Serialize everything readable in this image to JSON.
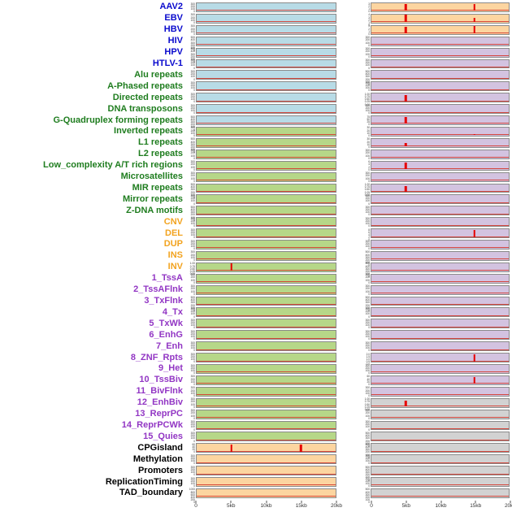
{
  "colors": {
    "label_virus": "#0a0acd",
    "label_repeat": "#1f7d1f",
    "label_sv": "#f2a31f",
    "label_state": "#9236c4",
    "label_other": "#000000",
    "panel_blue": "#b8dbe6",
    "panel_green": "#b6d788",
    "panel_orange": "#fcd5a0",
    "panel_purple": "#d3c3e0",
    "panel_gray": "#d2d2d2",
    "spike_red": "#e60000",
    "baseline_red": "#d43a2f"
  },
  "chart_data": {
    "type": "line",
    "x_ticks": [
      "0",
      "5kb",
      "10kb",
      "15kb",
      "20kb"
    ],
    "x_range_kb": [
      0,
      20
    ],
    "rows": [
      {
        "label": "AAV2",
        "group": "virus",
        "left_bg": "blue",
        "left_ticks": [
          "300",
          "200",
          "100",
          "0"
        ],
        "left_spikes": [],
        "right_bg": "orange",
        "right_ticks": [
          "3",
          "2",
          "1",
          "0"
        ],
        "right_spikes": [
          {
            "x_kb": 5,
            "rel_h": 0.9
          },
          {
            "x_kb": 15,
            "rel_h": 0.85
          }
        ]
      },
      {
        "label": "EBV",
        "group": "virus",
        "left_bg": "blue",
        "left_ticks": [
          "300",
          "200",
          "100",
          "0"
        ],
        "left_spikes": [],
        "right_bg": "orange",
        "right_ticks": [
          "4",
          "3",
          "2",
          "1",
          "0"
        ],
        "right_spikes": [
          {
            "x_kb": 5,
            "rel_h": 0.9
          },
          {
            "x_kb": 15,
            "rel_h": 0.55
          }
        ]
      },
      {
        "label": "HBV",
        "group": "virus",
        "left_bg": "blue",
        "left_ticks": [
          "300",
          "200",
          "100",
          "0"
        ],
        "left_spikes": [],
        "right_bg": "orange",
        "right_ticks": [
          "3",
          "2",
          "1",
          "0"
        ],
        "right_spikes": [
          {
            "x_kb": 5,
            "rel_h": 0.85
          },
          {
            "x_kb": 15,
            "rel_h": 0.9
          }
        ]
      },
      {
        "label": "HIV",
        "group": "virus",
        "left_bg": "blue",
        "left_ticks": [
          "500",
          "400",
          "300",
          "200",
          "100",
          "0"
        ],
        "left_spikes": [],
        "right_bg": "purple",
        "right_ticks": [
          "300",
          "200",
          "100",
          "0"
        ],
        "right_spikes": []
      },
      {
        "label": "HPV",
        "group": "virus",
        "left_bg": "blue",
        "left_ticks": [
          "500",
          "400",
          "300",
          "200",
          "100",
          "0"
        ],
        "left_spikes": [],
        "right_bg": "purple",
        "right_ticks": [
          "300",
          "200",
          "100",
          "0"
        ],
        "right_spikes": []
      },
      {
        "label": "HTLV-1",
        "group": "virus",
        "left_bg": "blue",
        "left_ticks": [
          "300",
          "200",
          "100",
          "0"
        ],
        "left_spikes": [],
        "right_bg": "purple",
        "right_ticks": [
          "300",
          "200",
          "100",
          "0"
        ],
        "right_spikes": []
      },
      {
        "label": "Alu repeats",
        "group": "repeat",
        "left_bg": "blue",
        "left_ticks": [
          "300",
          "200",
          "100",
          "0"
        ],
        "left_spikes": [],
        "right_bg": "purple",
        "right_ticks": [
          "500",
          "400",
          "300",
          "200",
          "100",
          "0"
        ],
        "right_spikes": []
      },
      {
        "label": "A-Phased repeats",
        "group": "repeat",
        "left_bg": "blue",
        "left_ticks": [
          "300",
          "200",
          "100",
          "0"
        ],
        "left_spikes": [],
        "right_bg": "purple",
        "right_ticks": [
          "300",
          "200",
          "100",
          "0"
        ],
        "right_spikes": []
      },
      {
        "label": "Directed repeats",
        "group": "repeat",
        "left_bg": "blue",
        "left_ticks": [
          "300",
          "200",
          "100",
          "0"
        ],
        "left_spikes": [],
        "right_bg": "purple",
        "right_ticks": [
          "1.00",
          "0.75",
          "0.50",
          "0.25",
          "0.00"
        ],
        "right_spikes": [
          {
            "x_kb": 5,
            "rel_h": 0.8
          }
        ]
      },
      {
        "label": "DNA transposons",
        "group": "repeat",
        "left_bg": "blue",
        "left_ticks": [
          "300",
          "200",
          "100",
          "0"
        ],
        "left_spikes": [],
        "right_bg": "purple",
        "right_ticks": [
          "300",
          "200",
          "100",
          "0"
        ],
        "right_spikes": []
      },
      {
        "label": "G-Quadruplex forming repeats",
        "group": "repeat",
        "left_bg": "blue",
        "left_ticks": [
          "500",
          "400",
          "300",
          "200",
          "100",
          "0"
        ],
        "left_spikes": [],
        "right_bg": "purple",
        "right_ticks": [
          "75",
          "50",
          "25",
          "0"
        ],
        "right_spikes": [
          {
            "x_kb": 5,
            "rel_h": 0.85
          }
        ]
      },
      {
        "label": "Inverted repeats",
        "group": "repeat",
        "left_bg": "green",
        "left_ticks": [
          "300",
          "200",
          "100",
          "0"
        ],
        "left_spikes": [],
        "right_bg": "purple",
        "right_ticks": [
          "30",
          "20",
          "10",
          "0"
        ],
        "right_spikes": [
          {
            "x_kb": 15,
            "rel_h": 0.12
          }
        ]
      },
      {
        "label": "L1 repeats",
        "group": "repeat",
        "left_bg": "green",
        "left_ticks": [
          "500",
          "400",
          "300",
          "200",
          "100",
          "0"
        ],
        "left_spikes": [],
        "right_bg": "purple",
        "right_ticks": [
          "30",
          "20",
          "10",
          "0"
        ],
        "right_spikes": [
          {
            "x_kb": 5,
            "rel_h": 0.45
          }
        ]
      },
      {
        "label": "L2 repeats",
        "group": "repeat",
        "left_bg": "green",
        "left_ticks": [
          "300",
          "200",
          "100",
          "0"
        ],
        "left_spikes": [],
        "right_bg": "purple",
        "right_ticks": [
          "300",
          "200",
          "100",
          "0"
        ],
        "right_spikes": []
      },
      {
        "label": "Low_complexity A/T rich regions",
        "group": "repeat",
        "left_bg": "green",
        "left_ticks": [
          "300",
          "200",
          "100",
          "0"
        ],
        "left_spikes": [],
        "right_bg": "purple",
        "right_ticks": [
          "6",
          "4",
          "2",
          "0"
        ],
        "right_spikes": [
          {
            "x_kb": 5,
            "rel_h": 0.8
          }
        ]
      },
      {
        "label": "Microsatellites",
        "group": "repeat",
        "left_bg": "green",
        "left_ticks": [
          "300",
          "200",
          "100",
          "0"
        ],
        "left_spikes": [],
        "right_bg": "purple",
        "right_ticks": [
          "300",
          "200",
          "100",
          "0"
        ],
        "right_spikes": []
      },
      {
        "label": "MIR repeats",
        "group": "repeat",
        "left_bg": "green",
        "left_ticks": [
          "500",
          "400",
          "300",
          "200",
          "100",
          "0"
        ],
        "left_spikes": [],
        "right_bg": "purple",
        "right_ticks": [
          "1.00",
          "0.75",
          "0.50",
          "0.25",
          "0.00"
        ],
        "right_spikes": [
          {
            "x_kb": 5,
            "rel_h": 0.7
          }
        ]
      },
      {
        "label": "Mirror repeats",
        "group": "repeat",
        "left_bg": "green",
        "left_ticks": [
          "300",
          "200",
          "100",
          "0"
        ],
        "left_spikes": [],
        "right_bg": "purple",
        "right_ticks": [
          "300",
          "200",
          "100",
          "0"
        ],
        "right_spikes": []
      },
      {
        "label": "Z-DNA motifs",
        "group": "repeat",
        "left_bg": "green",
        "left_ticks": [
          "500",
          "400",
          "300",
          "200",
          "100",
          "0"
        ],
        "left_spikes": [],
        "right_bg": "purple",
        "right_ticks": [
          "300",
          "200",
          "100",
          "0"
        ],
        "right_spikes": []
      },
      {
        "label": "CNV",
        "group": "sv",
        "left_bg": "green",
        "left_ticks": [
          "300",
          "200",
          "100",
          "0"
        ],
        "left_spikes": [],
        "right_bg": "purple",
        "right_ticks": [
          "300",
          "200",
          "100",
          "0"
        ],
        "right_spikes": []
      },
      {
        "label": "DEL",
        "group": "sv",
        "left_bg": "green",
        "left_ticks": [
          "300",
          "200",
          "100",
          "0"
        ],
        "left_spikes": [],
        "right_bg": "purple",
        "right_ticks": [
          "8",
          "6",
          "4",
          "2",
          "0"
        ],
        "right_spikes": [
          {
            "x_kb": 15,
            "rel_h": 0.9
          }
        ]
      },
      {
        "label": "DUP",
        "group": "sv",
        "left_bg": "green",
        "left_ticks": [
          "300",
          "200",
          "100",
          "0"
        ],
        "left_spikes": [],
        "right_bg": "purple",
        "right_ticks": [
          "300",
          "200",
          "100",
          "0"
        ],
        "right_spikes": []
      },
      {
        "label": "INS",
        "group": "sv",
        "left_bg": "green",
        "left_ticks": [
          "300",
          "200",
          "100",
          "0"
        ],
        "left_spikes": [],
        "right_bg": "purple",
        "right_ticks": [
          "500",
          "400",
          "300",
          "200",
          "100",
          "0"
        ],
        "right_spikes": []
      },
      {
        "label": "INV",
        "group": "sv",
        "left_bg": "green",
        "left_ticks": [
          "1.00",
          "0.75",
          "0.50",
          "0.25",
          "0.00"
        ],
        "left_spikes": [
          {
            "x_kb": 5,
            "rel_h": 0.9
          }
        ],
        "right_bg": "purple",
        "right_ticks": [
          "500",
          "400",
          "300",
          "200",
          "100",
          "0"
        ],
        "right_spikes": []
      },
      {
        "label": "1_TssA",
        "group": "state",
        "left_bg": "green",
        "left_ticks": [
          "300",
          "200",
          "100",
          "0"
        ],
        "left_spikes": [],
        "right_bg": "purple",
        "right_ticks": [
          "300",
          "200",
          "100",
          "0"
        ],
        "right_spikes": []
      },
      {
        "label": "2_TssAFlnk",
        "group": "state",
        "left_bg": "green",
        "left_ticks": [
          "300",
          "200",
          "100",
          "0"
        ],
        "left_spikes": [],
        "right_bg": "purple",
        "right_ticks": [
          "300",
          "200",
          "100",
          "0"
        ],
        "right_spikes": []
      },
      {
        "label": "3_TxFlnk",
        "group": "state",
        "left_bg": "green",
        "left_ticks": [
          "500",
          "400",
          "300",
          "200",
          "100",
          "0"
        ],
        "left_spikes": [],
        "right_bg": "purple",
        "right_ticks": [
          "500",
          "400",
          "300",
          "200",
          "100",
          "0"
        ],
        "right_spikes": []
      },
      {
        "label": "4_Tx",
        "group": "state",
        "left_bg": "green",
        "left_ticks": [
          "300",
          "200",
          "100",
          "0"
        ],
        "left_spikes": [],
        "right_bg": "purple",
        "right_ticks": [
          "300",
          "200",
          "100",
          "0"
        ],
        "right_spikes": []
      },
      {
        "label": "5_TxWk",
        "group": "state",
        "left_bg": "green",
        "left_ticks": [
          "300",
          "200",
          "100",
          "0"
        ],
        "left_spikes": [],
        "right_bg": "purple",
        "right_ticks": [
          "300",
          "200",
          "100",
          "0"
        ],
        "right_spikes": []
      },
      {
        "label": "6_EnhG",
        "group": "state",
        "left_bg": "green",
        "left_ticks": [
          "300",
          "200",
          "100",
          "0"
        ],
        "left_spikes": [],
        "right_bg": "purple",
        "right_ticks": [
          "300",
          "200",
          "100",
          "0"
        ],
        "right_spikes": []
      },
      {
        "label": "7_Enh",
        "group": "state",
        "left_bg": "green",
        "left_ticks": [
          "300",
          "200",
          "100",
          "0"
        ],
        "left_spikes": [],
        "right_bg": "purple",
        "right_ticks": [
          "300",
          "200",
          "100",
          "0"
        ],
        "right_spikes": []
      },
      {
        "label": "8_ZNF_Rpts",
        "group": "state",
        "left_bg": "green",
        "left_ticks": [
          "300",
          "200",
          "100",
          "0"
        ],
        "left_spikes": [],
        "right_bg": "purple",
        "right_ticks": [
          "2.0",
          "1.5",
          "1.0",
          "0.5",
          "0.0"
        ],
        "right_spikes": [
          {
            "x_kb": 15,
            "rel_h": 0.85
          }
        ]
      },
      {
        "label": "9_Het",
        "group": "state",
        "left_bg": "green",
        "left_ticks": [
          "300",
          "200",
          "100",
          "0"
        ],
        "left_spikes": [],
        "right_bg": "purple",
        "right_ticks": [
          "300",
          "200",
          "100",
          "0"
        ],
        "right_spikes": []
      },
      {
        "label": "10_TssBiv",
        "group": "state",
        "left_bg": "green",
        "left_ticks": [
          "300",
          "200",
          "100",
          "0"
        ],
        "left_spikes": [],
        "right_bg": "purple",
        "right_ticks": [
          "60",
          "40",
          "20",
          "0"
        ],
        "right_spikes": [
          {
            "x_kb": 15,
            "rel_h": 0.8
          }
        ]
      },
      {
        "label": "11_BivFlnk",
        "group": "state",
        "left_bg": "green",
        "left_ticks": [
          "300",
          "200",
          "100",
          "0"
        ],
        "left_spikes": [],
        "right_bg": "purple",
        "right_ticks": [
          "300",
          "200",
          "100",
          "0"
        ],
        "right_spikes": []
      },
      {
        "label": "12_EnhBiv",
        "group": "state",
        "left_bg": "green",
        "left_ticks": [
          "300",
          "200",
          "100",
          "0"
        ],
        "left_spikes": [],
        "right_bg": "gray",
        "right_ticks": [
          "1.00",
          "0.75",
          "0.50",
          "0.25",
          "0.00"
        ],
        "right_spikes": [
          {
            "x_kb": 5,
            "rel_h": 0.75
          }
        ]
      },
      {
        "label": "13_ReprPC",
        "group": "state",
        "left_bg": "green",
        "left_ticks": [
          "300",
          "200",
          "100",
          "0"
        ],
        "left_spikes": [],
        "right_bg": "gray",
        "right_ticks": [
          "300",
          "200",
          "100",
          "0"
        ],
        "right_spikes": []
      },
      {
        "label": "14_ReprPCWk",
        "group": "state",
        "left_bg": "green",
        "left_ticks": [
          "300",
          "200",
          "100",
          "0"
        ],
        "left_spikes": [],
        "right_bg": "gray",
        "right_ticks": [
          "300",
          "200",
          "100",
          "0"
        ],
        "right_spikes": []
      },
      {
        "label": "15_Quies",
        "group": "state",
        "left_bg": "green",
        "left_ticks": [
          "300",
          "200",
          "100",
          "0"
        ],
        "left_spikes": [],
        "right_bg": "gray",
        "right_ticks": [
          "500",
          "400",
          "300",
          "200",
          "100",
          "0"
        ],
        "right_spikes": []
      },
      {
        "label": "CPGisland",
        "group": "other",
        "left_bg": "orange",
        "left_ticks": [
          "60",
          "40",
          "20",
          "0"
        ],
        "left_spikes": [
          {
            "x_kb": 5,
            "rel_h": 0.9
          },
          {
            "x_kb": 15,
            "rel_h": 0.85
          }
        ],
        "right_bg": "gray",
        "right_ticks": [
          "500",
          "400",
          "300",
          "200",
          "100",
          "0"
        ],
        "right_spikes": []
      },
      {
        "label": "Methylation",
        "group": "other",
        "left_bg": "orange",
        "left_ticks": [
          "300",
          "200",
          "100",
          "0"
        ],
        "left_spikes": [],
        "right_bg": "gray",
        "right_ticks": [
          "300",
          "200",
          "100",
          "0"
        ],
        "right_spikes": []
      },
      {
        "label": "Promoters",
        "group": "other",
        "left_bg": "orange",
        "left_ticks": [
          "300",
          "200",
          "100",
          "0"
        ],
        "left_spikes": [],
        "right_bg": "gray",
        "right_ticks": [
          "500",
          "400",
          "300",
          "200",
          "100",
          "0"
        ],
        "right_spikes": []
      },
      {
        "label": "ReplicationTiming",
        "group": "other",
        "left_bg": "orange",
        "left_ticks": [
          "300",
          "200",
          "100",
          "0"
        ],
        "left_spikes": [],
        "right_bg": "gray",
        "right_ticks": [
          "300",
          "200",
          "100",
          "0"
        ],
        "right_spikes": []
      },
      {
        "label": "TAD_boundary",
        "group": "other",
        "left_bg": "orange",
        "left_ticks": [
          "1000",
          "800",
          "600",
          "400",
          "200",
          "0"
        ],
        "left_spikes": [],
        "right_bg": "gray",
        "right_ticks": [
          "500",
          "400",
          "300",
          "200",
          "100",
          "0"
        ],
        "right_spikes": []
      }
    ]
  }
}
